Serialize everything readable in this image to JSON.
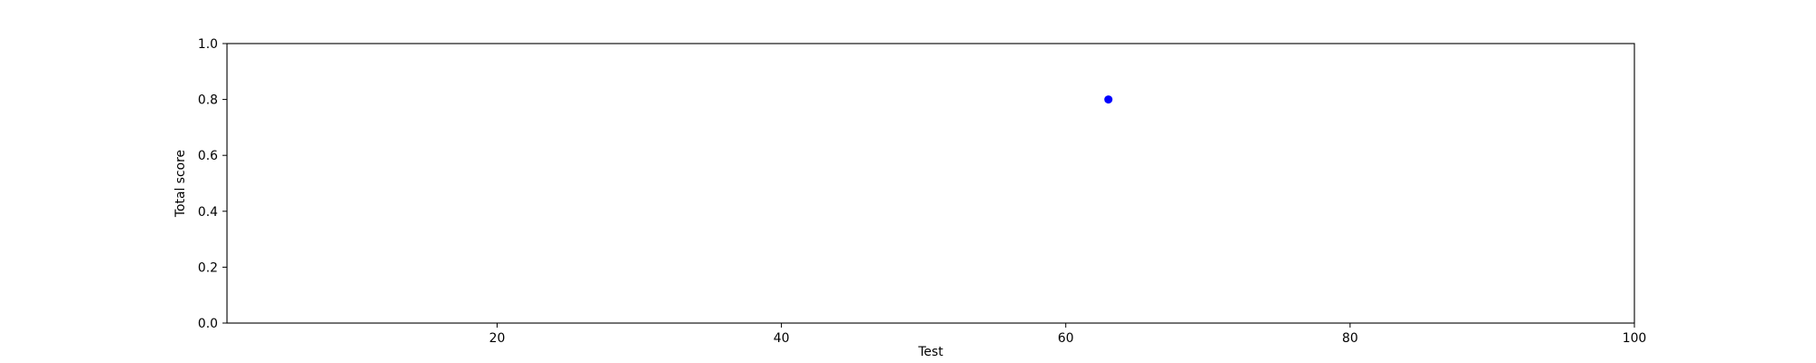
{
  "chart_data": {
    "type": "scatter",
    "xlabel": "Test",
    "ylabel": "Total score",
    "xlim": [
      1,
      100
    ],
    "ylim": [
      0.0,
      1.0
    ],
    "xticks": [
      20,
      40,
      60,
      80,
      100
    ],
    "yticks": [
      0.0,
      0.2,
      0.4,
      0.6,
      0.8,
      1.0
    ],
    "xtick_labels": [
      "20",
      "40",
      "60",
      "80",
      "100"
    ],
    "ytick_labels": [
      "0.0",
      "0.2",
      "0.4",
      "0.6",
      "0.8",
      "1.0"
    ],
    "series": [
      {
        "x": [
          63
        ],
        "y": [
          0.8
        ],
        "color": "#0000ff"
      }
    ],
    "grid": false
  }
}
